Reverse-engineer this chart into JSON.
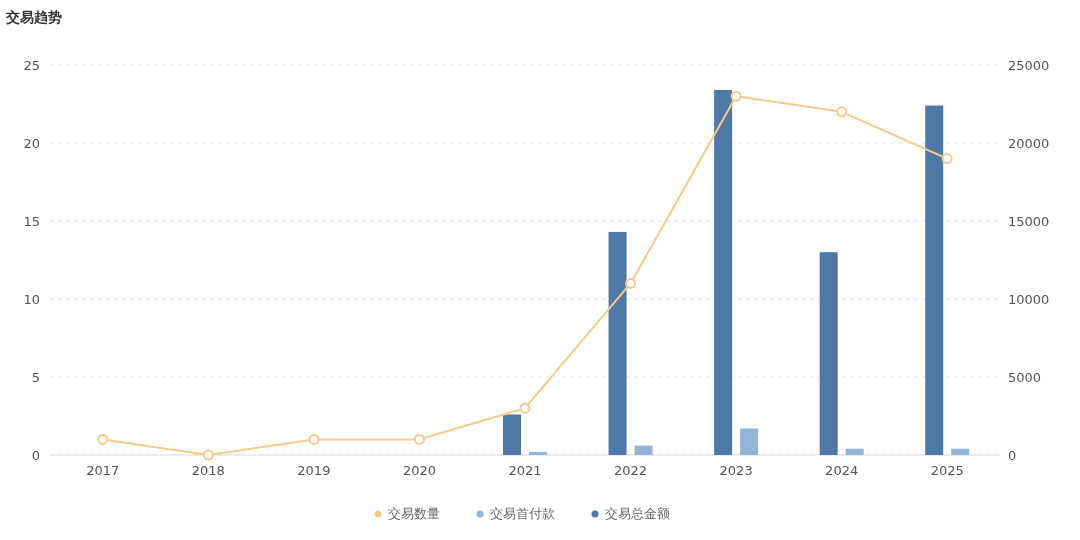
{
  "chart_data": {
    "type": "bar",
    "title": "交易趋势",
    "categories": [
      "2017",
      "2018",
      "2019",
      "2020",
      "2021",
      "2022",
      "2023",
      "2024",
      "2025"
    ],
    "series": [
      {
        "name": "交易数量",
        "type": "line",
        "color": "#f7c98a",
        "values": [
          1,
          0,
          1,
          1,
          3,
          11,
          23,
          22,
          19
        ]
      },
      {
        "name": "交易首付款",
        "axis": "y2",
        "color": "#93b4d8",
        "values": [
          null,
          null,
          null,
          null,
          200,
          600,
          1700,
          400,
          400
        ]
      },
      {
        "name": "交易总金额",
        "axis": "y2",
        "color": "#4e79a7",
        "values": [
          null,
          null,
          null,
          null,
          2600,
          14300,
          23400,
          13000,
          22400
        ]
      }
    ],
    "ylim": [
      0,
      25
    ],
    "yticks": [
      0,
      5,
      10,
      15,
      20,
      25
    ],
    "y2lim": [
      0,
      25000
    ],
    "y2ticks": [
      0,
      5000,
      10000,
      15000,
      20000,
      25000
    ],
    "grid": "y",
    "legend": "bottom",
    "marker": "circle",
    "line_style": "solid"
  }
}
